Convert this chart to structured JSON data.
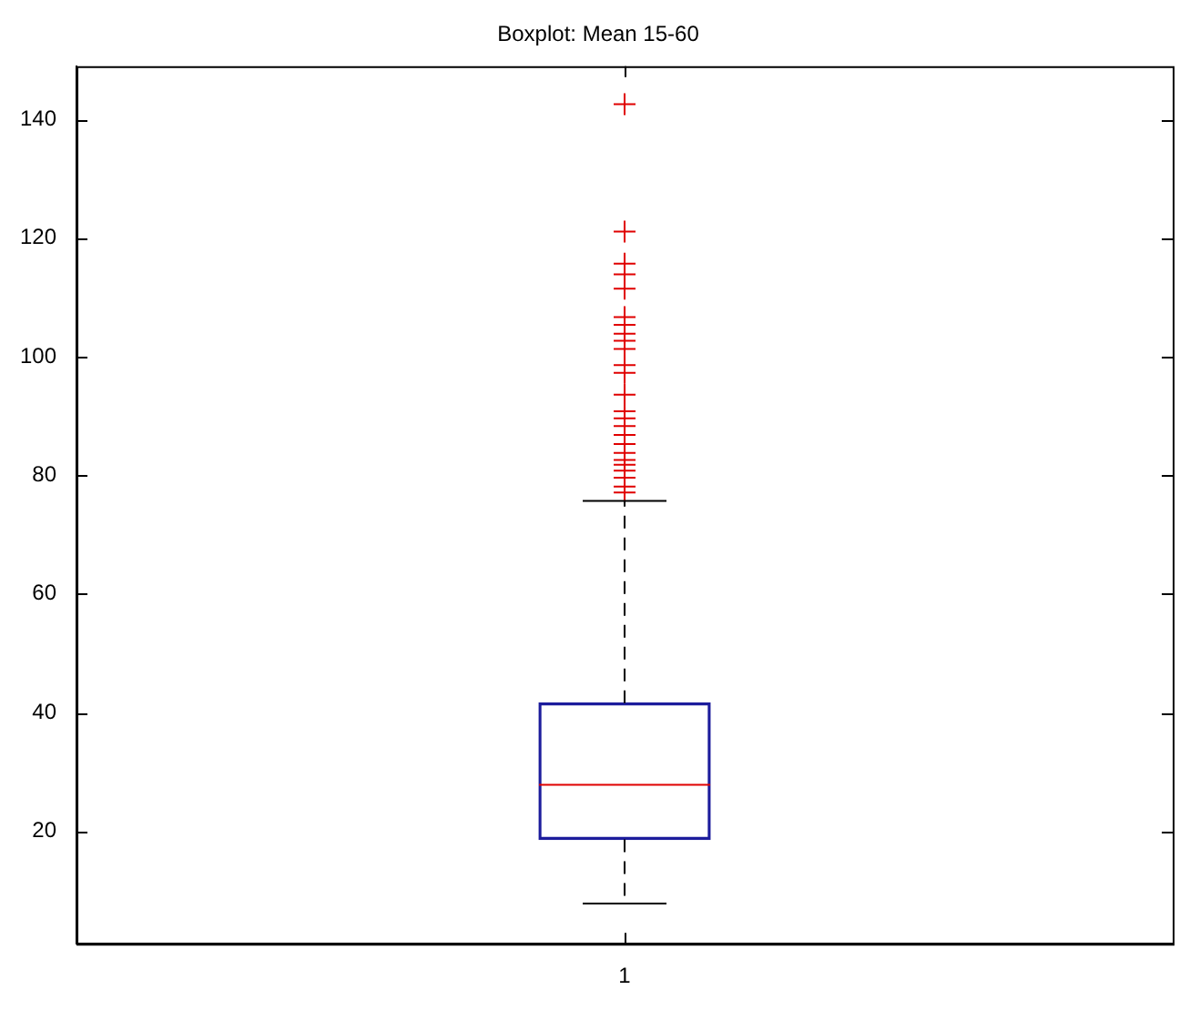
{
  "chart_data": {
    "type": "box",
    "title": "Boxplot: Mean 15-60",
    "categories": [
      "1"
    ],
    "series": [
      {
        "color": "#1c1c9c",
        "boxes": [
          {
            "low": 7.8,
            "q1": 18.6,
            "median": 27.8,
            "q3": 41.6,
            "high": 75.7,
            "outliers": [
              142.6,
              121.1,
              115.7,
              113.9,
              111.5,
              106.7,
              105.4,
              103.9,
              102.7,
              101.3,
              98.6,
              97.3,
              93.6,
              90.8,
              89.6,
              88.3,
              86.8,
              85.3,
              83.8,
              82.6,
              81.8,
              80.8,
              79.6,
              78.1,
              77.1
            ]
          }
        ]
      }
    ],
    "ylim": [
      1,
      149
    ],
    "yticks": [
      20,
      40,
      60,
      80,
      100,
      120,
      140
    ]
  }
}
